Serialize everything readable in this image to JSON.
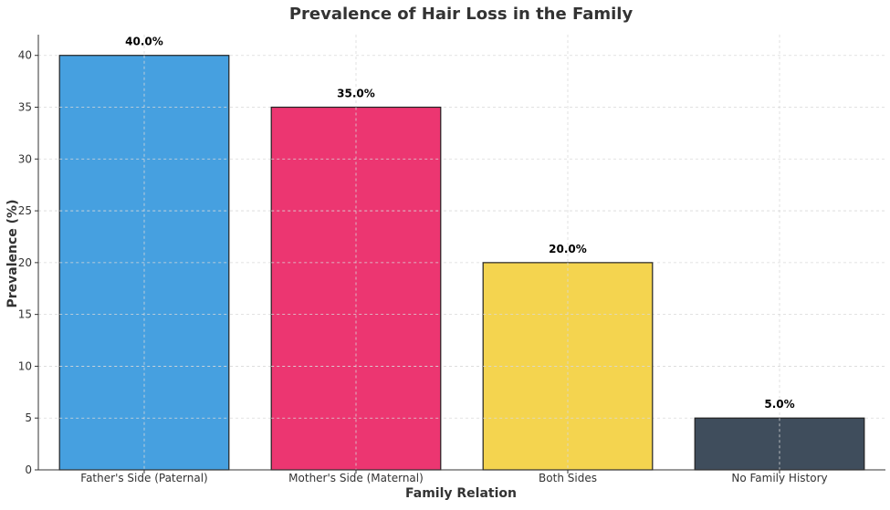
{
  "chart_data": {
    "type": "bar",
    "title": "Prevalence of Hair Loss in the Family",
    "xlabel": "Family Relation",
    "ylabel": "Prevalence (%)",
    "categories": [
      "Father's Side (Paternal)",
      "Mother's Side (Maternal)",
      "Both Sides",
      "No Family History"
    ],
    "values": [
      40,
      35,
      20,
      5
    ],
    "data_labels": [
      "40.0%",
      "35.0%",
      "20.0%",
      "5.0%"
    ],
    "colors": [
      "#46a0e0",
      "#ec3671",
      "#f4d44f",
      "#3f4d5c"
    ],
    "ylim": [
      0,
      42
    ],
    "yticks": [
      0,
      5,
      10,
      15,
      20,
      25,
      30,
      35,
      40
    ],
    "grid": true,
    "legend": "none"
  }
}
